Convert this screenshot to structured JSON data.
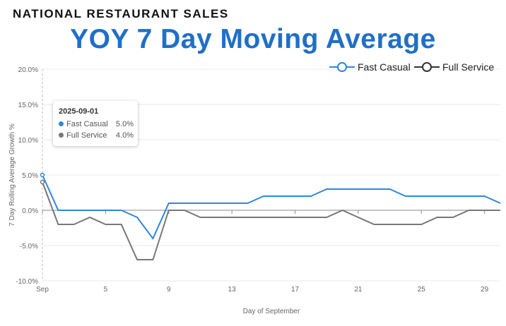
{
  "header": {
    "supertitle": "NATIONAL RESTAURANT SALES",
    "title": "YOY 7 Day Moving Average"
  },
  "tooltip": {
    "date": "2025-09-01",
    "rows": [
      {
        "name": "Fast Casual",
        "value": "5.0%"
      },
      {
        "name": "Full Service",
        "value": "4.0%"
      }
    ]
  },
  "chart_data": {
    "type": "line",
    "title": "YOY 7 Day Moving Average",
    "xlabel": "Day of September",
    "ylabel": "7 Day Rolling Average Growth %",
    "ylim": [
      -10,
      20
    ],
    "xlim": [
      1,
      30
    ],
    "yticks": [
      "20.0%",
      "15.0%",
      "10.0%",
      "5.0%",
      "0.0%",
      "-5.0%",
      "-10.0%"
    ],
    "ytick_values": [
      20,
      15,
      10,
      5,
      0,
      -5,
      -10
    ],
    "xticks": [
      "Sep",
      "5",
      "9",
      "13",
      "17",
      "21",
      "25",
      "29"
    ],
    "xtick_values": [
      1,
      5,
      9,
      13,
      17,
      21,
      25,
      29
    ],
    "x": [
      1,
      2,
      3,
      4,
      5,
      6,
      7,
      8,
      9,
      10,
      11,
      12,
      13,
      14,
      15,
      16,
      17,
      18,
      19,
      20,
      21,
      22,
      23,
      24,
      25,
      26,
      27,
      28,
      29,
      30
    ],
    "legend_position": "top-right",
    "series": [
      {
        "name": "Fast Casual",
        "color": "#2f86df",
        "values": [
          5,
          0,
          0,
          0,
          0,
          0,
          -1,
          -4,
          1,
          1,
          1,
          1,
          1,
          1,
          2,
          2,
          2,
          2,
          3,
          3,
          3,
          3,
          3,
          2,
          2,
          2,
          2,
          2,
          2,
          1
        ]
      },
      {
        "name": "Full Service",
        "color": "#777777",
        "values": [
          4,
          -2,
          -2,
          -1,
          -2,
          -2,
          -7,
          -7,
          0,
          0,
          -1,
          -1,
          -1,
          -1,
          -1,
          -1,
          -1,
          -1,
          -1,
          0,
          -1,
          -2,
          -2,
          -2,
          -2,
          -1,
          -1,
          0,
          0,
          0
        ]
      }
    ]
  }
}
